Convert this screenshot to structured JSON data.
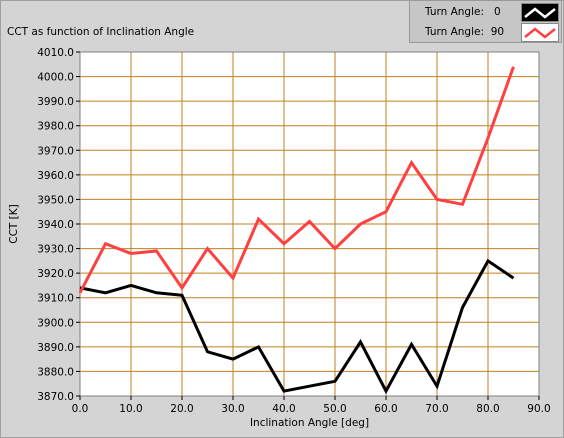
{
  "chart_data": {
    "type": "line",
    "title": "CCT as function of Inclination Angle",
    "xlabel": "Inclination Angle [deg]",
    "ylabel": "CCT [K]",
    "xlim": [
      0,
      90
    ],
    "ylim": [
      3870,
      4010
    ],
    "xticks": [
      "0.0",
      "10.0",
      "20.0",
      "30.0",
      "40.0",
      "50.0",
      "60.0",
      "70.0",
      "80.0",
      "90.0"
    ],
    "yticks": [
      "3870.0",
      "3880.0",
      "3890.0",
      "3900.0",
      "3910.0",
      "3920.0",
      "3930.0",
      "3940.0",
      "3950.0",
      "3960.0",
      "3970.0",
      "3980.0",
      "3990.0",
      "4000.0",
      "4010.0"
    ],
    "grid": true,
    "legend_position": "top-right",
    "series": [
      {
        "name": "Turn Angle:",
        "turn_angle": "0",
        "color": "#000000",
        "x": [
          0,
          5,
          10,
          15,
          20,
          25,
          30,
          35,
          40,
          45,
          50,
          55,
          60,
          65,
          70,
          75,
          80,
          85
        ],
        "y": [
          3914,
          3912,
          3915,
          3912,
          3911,
          3888,
          3885,
          3890,
          3872,
          3874,
          3876,
          3892,
          3872,
          3891,
          3874,
          3906,
          3925,
          3918
        ]
      },
      {
        "name": "Turn Angle:",
        "turn_angle": "90",
        "color": "#ff4040",
        "x": [
          0,
          5,
          10,
          15,
          20,
          25,
          30,
          35,
          40,
          45,
          50,
          55,
          60,
          65,
          70,
          75,
          80,
          85
        ],
        "y": [
          3912,
          3932,
          3928,
          3929,
          3914,
          3930,
          3918,
          3942,
          3932,
          3941,
          3930,
          3940,
          3945,
          3965,
          3950,
          3948,
          3975,
          4004
        ]
      }
    ]
  },
  "colors": {
    "plot_background": "#ffffff",
    "grid": "#c08020",
    "frame": "#d4d4d4"
  }
}
